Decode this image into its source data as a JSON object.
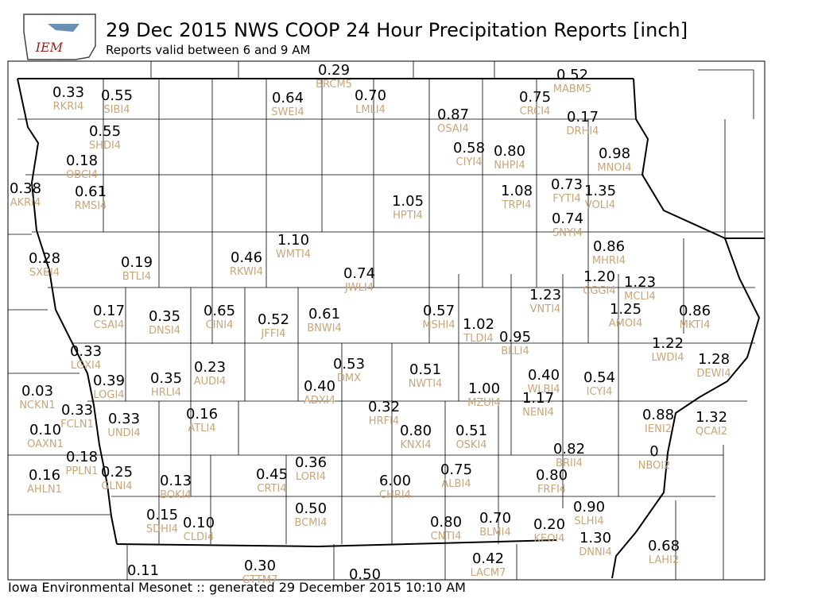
{
  "header": {
    "logo_text": "IEM",
    "title": "29 Dec 2015 NWS COOP 24 Hour Precipitation Reports [inch]",
    "subtitle": "Reports valid between 6 and 9 AM"
  },
  "stations": [
    {
      "value": "0.29",
      "id": "BRCM5"
    },
    {
      "value": "0.52",
      "id": "MABM5"
    },
    {
      "value": "0.33",
      "id": "RKRI4"
    },
    {
      "value": "0.55",
      "id": "SIBI4"
    },
    {
      "value": "0.64",
      "id": "SWEI4"
    },
    {
      "value": "0.70",
      "id": "LMLI4"
    },
    {
      "value": "0.75",
      "id": "CRCI4"
    },
    {
      "value": "0.87",
      "id": "OSAI4"
    },
    {
      "value": "0.17",
      "id": "DRHI4"
    },
    {
      "value": "0.55",
      "id": "SHDI4"
    },
    {
      "value": "0.58",
      "id": "CIYI4"
    },
    {
      "value": "0.80",
      "id": "NHPI4"
    },
    {
      "value": "0.98",
      "id": "MNOI4"
    },
    {
      "value": "0.18",
      "id": "OBCI4"
    },
    {
      "value": "0.38",
      "id": "AKRI4"
    },
    {
      "value": "0.61",
      "id": "RMSI4"
    },
    {
      "value": "1.05",
      "id": "HPTI4"
    },
    {
      "value": "1.08",
      "id": "TRPI4"
    },
    {
      "value": "0.73",
      "id": "FYTI4"
    },
    {
      "value": "1.35",
      "id": "VOLI4"
    },
    {
      "value": "0.74",
      "id": "SNYI4"
    },
    {
      "value": "0.86",
      "id": "MHRI4"
    },
    {
      "value": "1.10",
      "id": "WMTI4"
    },
    {
      "value": "0.28",
      "id": "SXBI4"
    },
    {
      "value": "0.19",
      "id": "BTLI4"
    },
    {
      "value": "0.46",
      "id": "RKWI4"
    },
    {
      "value": "0.74",
      "id": "JWLI4"
    },
    {
      "value": "1.20",
      "id": "CGGI4"
    },
    {
      "value": "1.23",
      "id": "MCLI4"
    },
    {
      "value": "1.23",
      "id": "VNTI4"
    },
    {
      "value": "0.17",
      "id": "CSAI4"
    },
    {
      "value": "0.35",
      "id": "DNSI4"
    },
    {
      "value": "0.65",
      "id": "CINI4"
    },
    {
      "value": "0.52",
      "id": "JFFI4"
    },
    {
      "value": "0.61",
      "id": "BNWI4"
    },
    {
      "value": "0.57",
      "id": "MSHI4"
    },
    {
      "value": "1.02",
      "id": "TLDI4"
    },
    {
      "value": "0.95",
      "id": "BLLI4"
    },
    {
      "value": "1.25",
      "id": "AMOI4"
    },
    {
      "value": "0.86",
      "id": "MKTI4"
    },
    {
      "value": "1.22",
      "id": "LWDI4"
    },
    {
      "value": "1.28",
      "id": "DEWI4"
    },
    {
      "value": "0.33",
      "id": "LGXI4"
    },
    {
      "value": "0.53",
      "id": "DMX"
    },
    {
      "value": "0.51",
      "id": "NWTI4"
    },
    {
      "value": "0.40",
      "id": "WLBI4"
    },
    {
      "value": "0.54",
      "id": "ICYI4"
    },
    {
      "value": "0.39",
      "id": "LOGI4"
    },
    {
      "value": "0.35",
      "id": "HRLI4"
    },
    {
      "value": "0.23",
      "id": "AUDI4"
    },
    {
      "value": "0.40",
      "id": "ADXI4"
    },
    {
      "value": "1.00",
      "id": "MZUI4"
    },
    {
      "value": "1.17",
      "id": "NENI4"
    },
    {
      "value": "0.03",
      "id": "NCKN1"
    },
    {
      "value": "0.33",
      "id": "FCLN1"
    },
    {
      "value": "0.32",
      "id": "HRFI4"
    },
    {
      "value": "0.33",
      "id": "UNDI4"
    },
    {
      "value": "0.16",
      "id": "ATLI4"
    },
    {
      "value": "0.80",
      "id": "KNXI4"
    },
    {
      "value": "0.51",
      "id": "OSKI4"
    },
    {
      "value": "0.88",
      "id": "IENI2"
    },
    {
      "value": "1.32",
      "id": "QCAI2"
    },
    {
      "value": "0.10",
      "id": "OAXN1"
    },
    {
      "value": "0.18",
      "id": "PPLN1"
    },
    {
      "value": "0.82",
      "id": "BRII4"
    },
    {
      "value": "0",
      "id": "NBOI2"
    },
    {
      "value": "0.16",
      "id": "AHLN1"
    },
    {
      "value": "0.25",
      "id": "GLNI4"
    },
    {
      "value": "0.13",
      "id": "BOKI4"
    },
    {
      "value": "0.45",
      "id": "CRTI4"
    },
    {
      "value": "0.36",
      "id": "LORI4"
    },
    {
      "value": "6.00",
      "id": "CHRI4"
    },
    {
      "value": "0.75",
      "id": "ALBI4"
    },
    {
      "value": "0.80",
      "id": "FRFI4"
    },
    {
      "value": "0.90",
      "id": "SLHI4"
    },
    {
      "value": "0.50",
      "id": "BCMI4"
    },
    {
      "value": "0.15",
      "id": "SDHI4"
    },
    {
      "value": "0.10",
      "id": "CLDI4"
    },
    {
      "value": "0.80",
      "id": "CNTI4"
    },
    {
      "value": "0.70",
      "id": "BLMI4"
    },
    {
      "value": "0.20",
      "id": "KEOI4"
    },
    {
      "value": "1.30",
      "id": "DNNI4"
    },
    {
      "value": "0.68",
      "id": "LAHI2"
    },
    {
      "value": "0.42",
      "id": "LACM7"
    },
    {
      "value": "0.11"
    },
    {
      "value": "0.30",
      "id": "GTTM7"
    },
    {
      "value": "0.50"
    }
  ],
  "footer": "Iowa Environmental Mesonet :: generated 29 December 2015 10:10 AM"
}
